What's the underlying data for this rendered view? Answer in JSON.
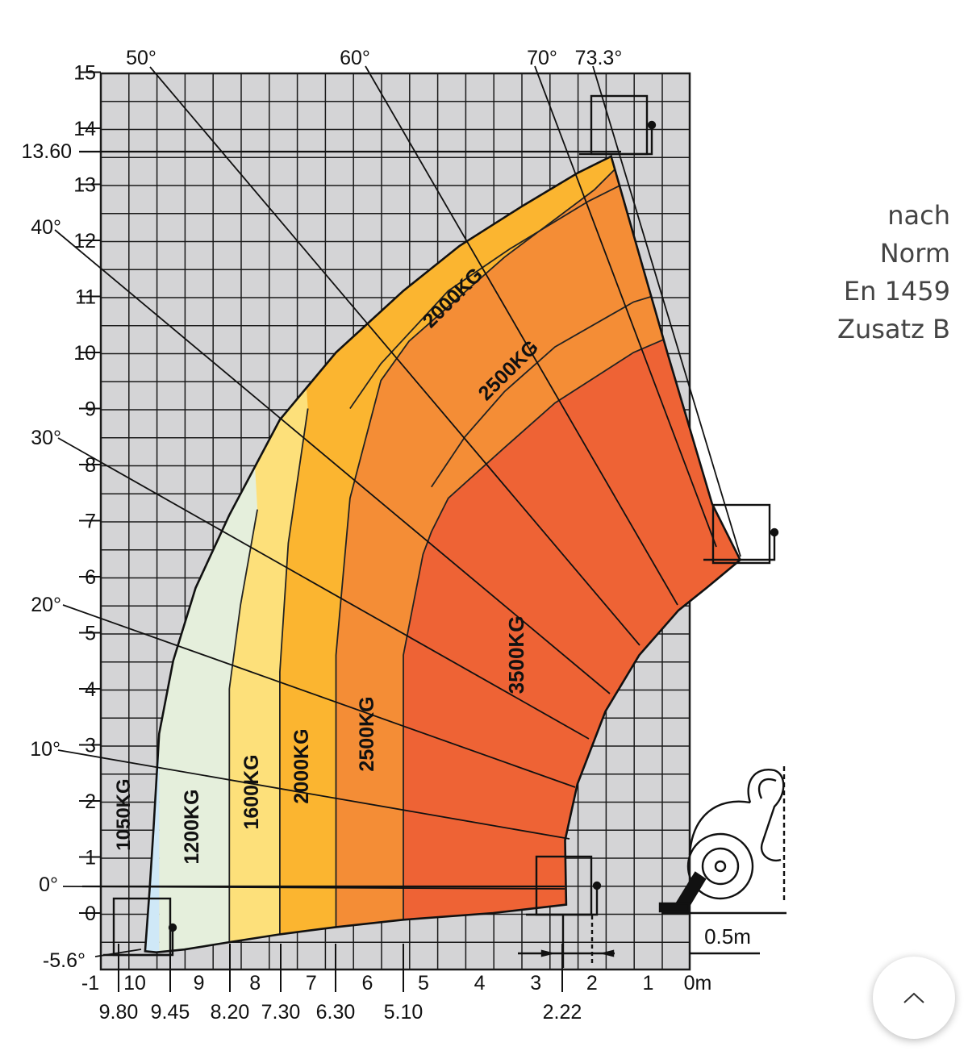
{
  "note": [
    "nach",
    "Norm",
    "En 1459",
    "Zusatz B"
  ],
  "colors": {
    "grid_bg": "#d4d4d6",
    "grid_line": "#1a1a1a",
    "zone_1050": "#cfe8f7",
    "zone_1200": "#e5efdc",
    "zone_1600": "#fde07a",
    "zone_2000": "#fbb530",
    "zone_2500": "#f48d36",
    "zone_3500": "#ee6335"
  },
  "chart_data": {
    "type": "load-chart",
    "xlim": [
      -1,
      10
    ],
    "ylim": [
      -0.7,
      15
    ],
    "x_direction": "reversed",
    "x_unit_label": "0m",
    "grid": true,
    "x_ticks": [
      {
        "value": 10,
        "label": "10"
      },
      {
        "value": 9,
        "label": "9"
      },
      {
        "value": 8,
        "label": "8"
      },
      {
        "value": 7,
        "label": "7"
      },
      {
        "value": 6,
        "label": "6"
      },
      {
        "value": 5,
        "label": "5"
      },
      {
        "value": 4,
        "label": "4"
      },
      {
        "value": 3,
        "label": "3"
      },
      {
        "value": 2,
        "label": "2"
      },
      {
        "value": 1,
        "label": "1"
      },
      {
        "value": 0,
        "label": "0m"
      },
      {
        "value": -1,
        "label": "-1"
      }
    ],
    "y_ticks": [
      0,
      1,
      2,
      3,
      4,
      5,
      6,
      7,
      8,
      9,
      10,
      11,
      12,
      13,
      14,
      15
    ],
    "max_height": {
      "value": 13.6,
      "label": "13.60"
    },
    "reach_markers": [
      {
        "value": 9.8,
        "label": "9.80"
      },
      {
        "value": 9.45,
        "label": "9.45"
      },
      {
        "value": 8.2,
        "label": "8.20"
      },
      {
        "value": 7.3,
        "label": "7.30"
      },
      {
        "value": 6.3,
        "label": "6.30"
      },
      {
        "value": 5.1,
        "label": "5.10"
      },
      {
        "value": 2.22,
        "label": "2.22"
      }
    ],
    "boom_angles": [
      {
        "value": -5.6,
        "label": "-5.6°"
      },
      {
        "value": 0,
        "label": "0°"
      },
      {
        "value": 10,
        "label": "10°"
      },
      {
        "value": 20,
        "label": "20°"
      },
      {
        "value": 30,
        "label": "30°"
      },
      {
        "value": 40,
        "label": "40°"
      },
      {
        "value": 50,
        "label": "50°"
      },
      {
        "value": 60,
        "label": "60°"
      },
      {
        "value": 70,
        "label": "70°"
      },
      {
        "value": 73.3,
        "label": "73.3°"
      }
    ],
    "load_zones": [
      {
        "label": "1050KG",
        "kg": 1050,
        "reach_from": 9.45,
        "reach_to": 9.8
      },
      {
        "label": "1200KG",
        "kg": 1200,
        "reach_from": 8.2,
        "reach_to": 9.45
      },
      {
        "label": "1600KG",
        "kg": 1600,
        "reach_from": 7.3,
        "reach_to": 8.2
      },
      {
        "label": "2000KG",
        "kg": 2000,
        "reach_from": 6.3,
        "reach_to": 7.3
      },
      {
        "label": "2500KG",
        "kg": 2500,
        "reach_from": 5.1,
        "reach_to": 6.3
      },
      {
        "label": "3500KG",
        "kg": 3500,
        "reach_from": 2.22,
        "reach_to": 5.1
      }
    ],
    "high_zone_labels": [
      "2000KG",
      "2500KG"
    ],
    "scale_bar": {
      "value": 0.5,
      "label": "0.5m"
    }
  }
}
